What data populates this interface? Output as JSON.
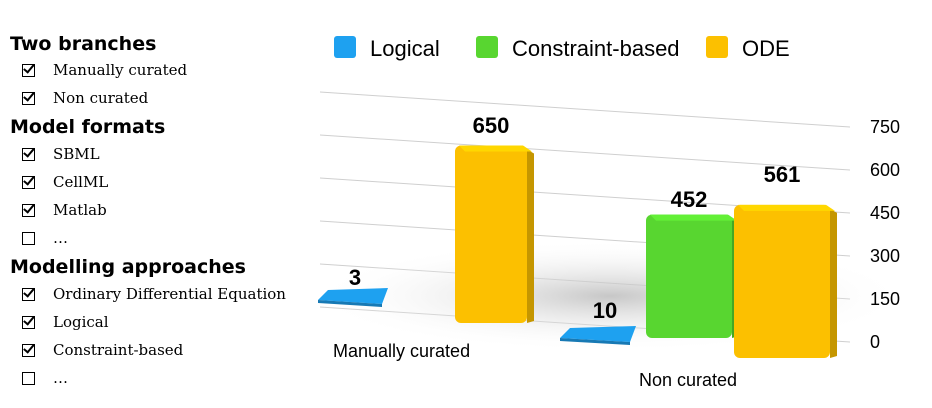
{
  "sidebar": {
    "sections": [
      {
        "title": "Two branches",
        "items": [
          {
            "label": "Manually curated",
            "checked": true
          },
          {
            "label": "Non curated",
            "checked": true
          }
        ]
      },
      {
        "title": "Model formats",
        "items": [
          {
            "label": "SBML",
            "checked": true
          },
          {
            "label": "CellML",
            "checked": true
          },
          {
            "label": "Matlab",
            "checked": true
          },
          {
            "label": "…",
            "checked": false
          }
        ]
      },
      {
        "title": "Modelling approaches",
        "items": [
          {
            "label": "Ordinary Differential Equation",
            "checked": true
          },
          {
            "label": "Logical",
            "checked": true
          },
          {
            "label": "Constraint-based",
            "checked": true
          },
          {
            "label": "…",
            "checked": false
          }
        ]
      }
    ]
  },
  "chart_data": {
    "type": "bar",
    "categories": [
      "Manually curated",
      "Non curated"
    ],
    "series": [
      {
        "name": "Logical",
        "color": "#1ea1f0",
        "values": [
          3,
          10
        ]
      },
      {
        "name": "Constraint-based",
        "color": "#58d630",
        "values": [
          0,
          452
        ]
      },
      {
        "name": "ODE",
        "color": "#fcc000",
        "values": [
          650,
          561
        ]
      }
    ],
    "data_labels": [
      [
        "3",
        "10"
      ],
      [
        "",
        "452"
      ],
      [
        "650",
        "561"
      ]
    ],
    "yticks": [
      0,
      150,
      300,
      450,
      600,
      750
    ],
    "ylim": [
      0,
      750
    ],
    "legend_position": "top",
    "style": "3d",
    "grid": true
  }
}
